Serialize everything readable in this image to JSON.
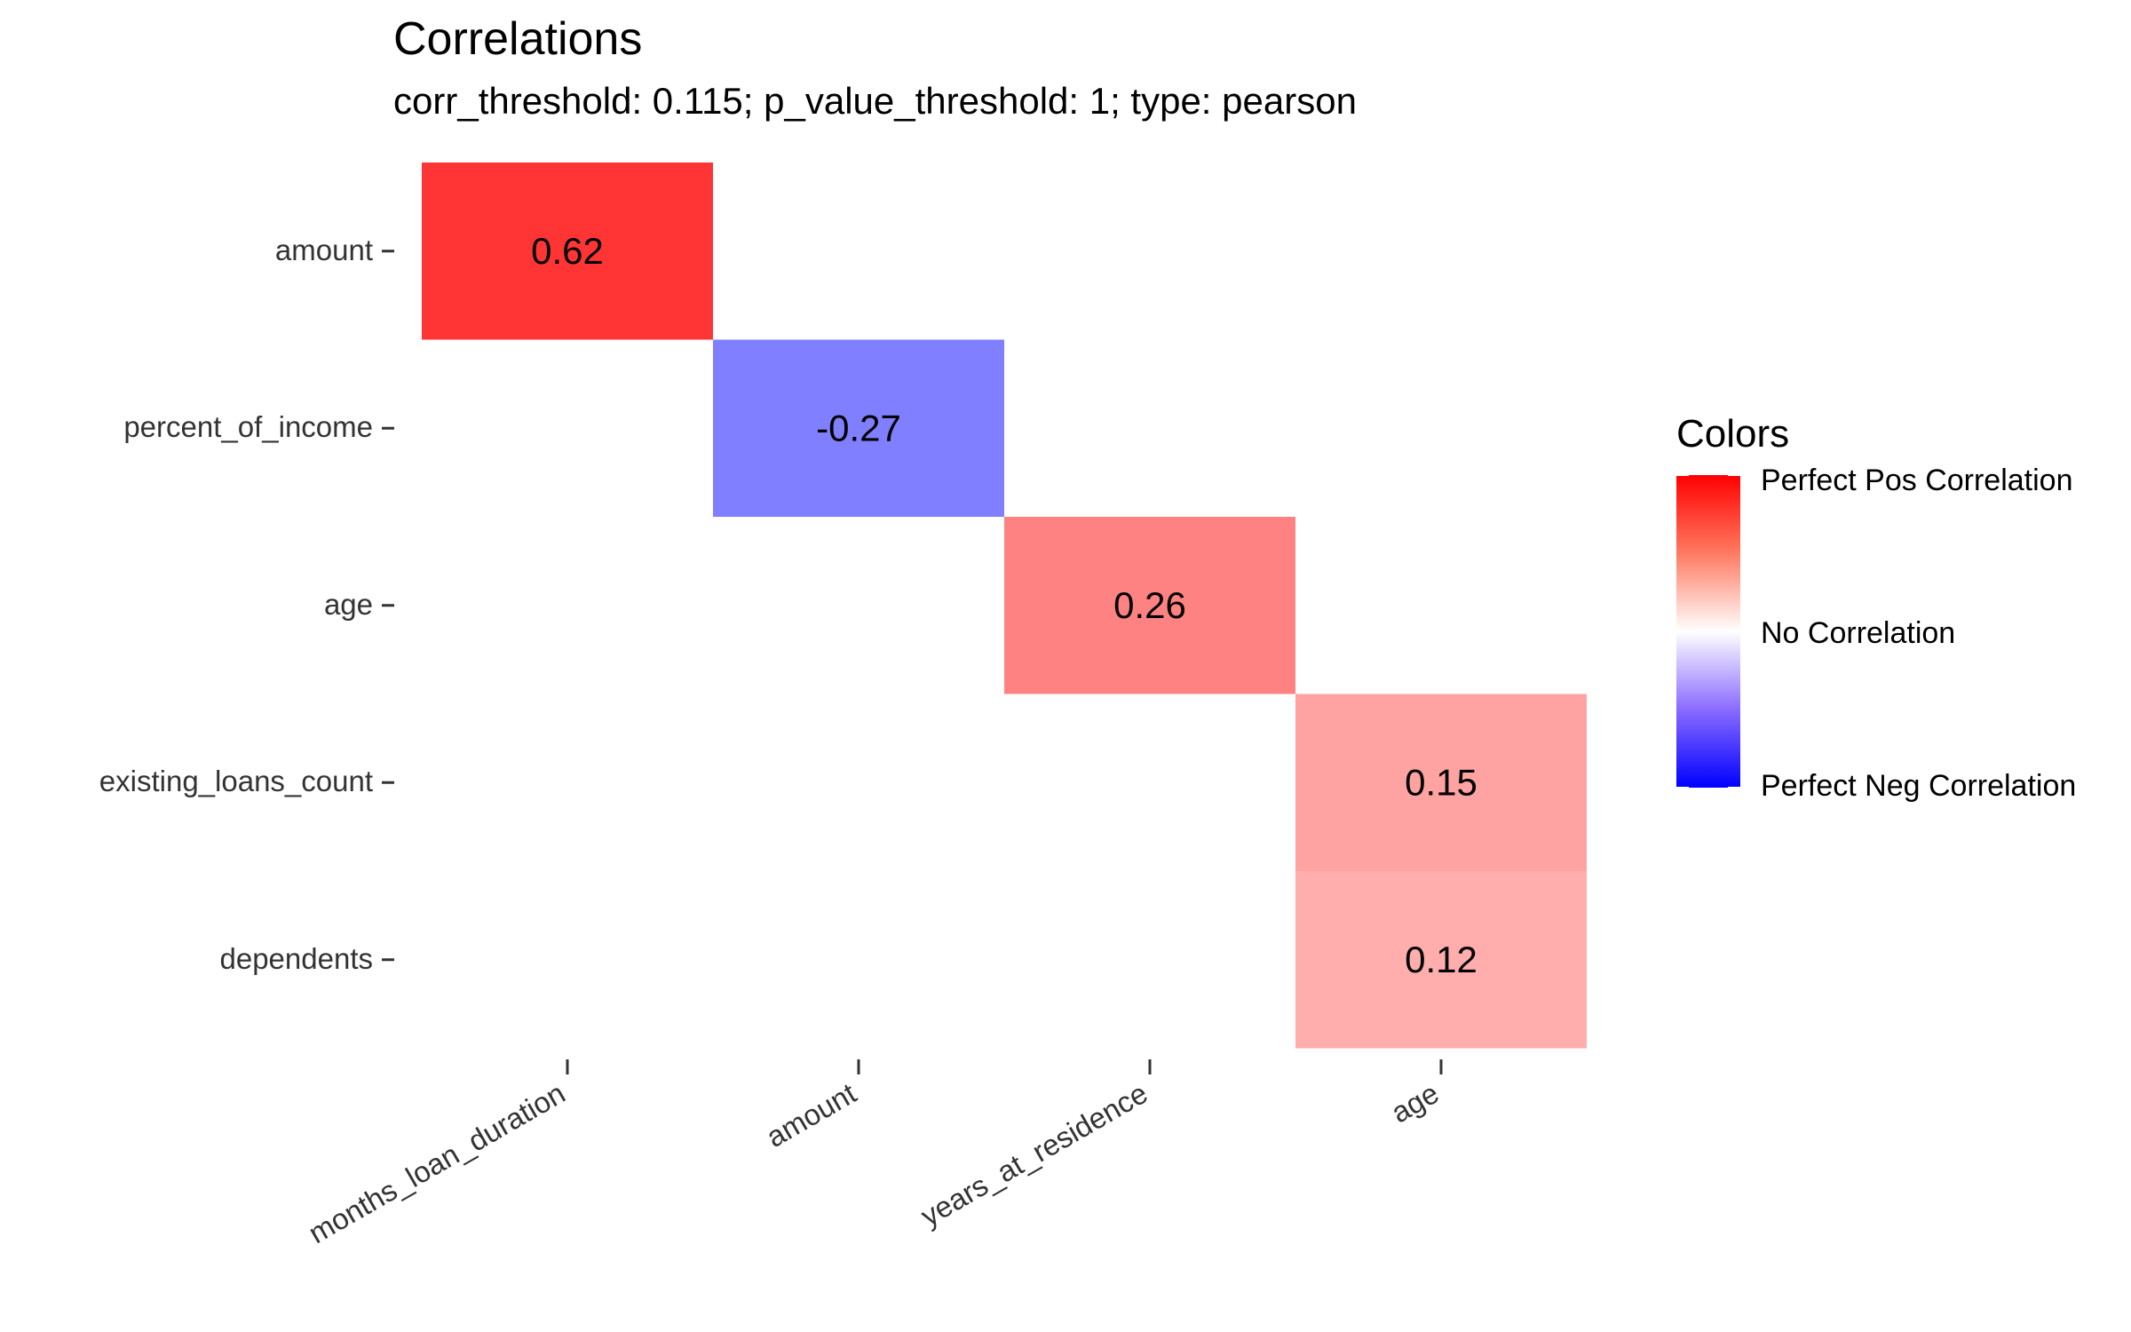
{
  "chart_data": {
    "type": "heatmap",
    "title": "Correlations",
    "subtitle": "corr_threshold: 0.115; p_value_threshold: 1; type: pearson",
    "x_categories": [
      "months_loan_duration",
      "amount",
      "years_at_residence",
      "age"
    ],
    "y_categories": [
      "amount",
      "percent_of_income",
      "age",
      "existing_loans_count",
      "dependents"
    ],
    "cells": [
      {
        "x": "months_loan_duration",
        "y": "amount",
        "value": 0.62,
        "label": "0.62"
      },
      {
        "x": "amount",
        "y": "percent_of_income",
        "value": -0.27,
        "label": "-0.27"
      },
      {
        "x": "years_at_residence",
        "y": "age",
        "value": 0.26,
        "label": "0.26"
      },
      {
        "x": "age",
        "y": "existing_loans_count",
        "value": 0.15,
        "label": "0.15"
      },
      {
        "x": "age",
        "y": "dependents",
        "value": 0.12,
        "label": "0.12"
      }
    ],
    "value_range": [
      -1,
      1
    ],
    "grid": false,
    "legend": {
      "title": "Colors",
      "placement": "right",
      "labels": [
        "Perfect Pos Correlation",
        "No Correlation",
        "Perfect Neg Correlation"
      ],
      "colors": {
        "positive": "#ff0000",
        "neutral": "#ffffff",
        "negative": "#0000ff"
      }
    }
  }
}
